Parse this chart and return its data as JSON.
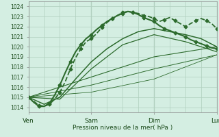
{
  "xlabel": "Pression niveau de la mer( hPa )",
  "bg_color": "#d4eee2",
  "grid_color": "#b0cfbe",
  "line_color": "#2d6b2d",
  "xlim": [
    0,
    72
  ],
  "ylim": [
    1013.5,
    1024.5
  ],
  "yticks": [
    1014,
    1015,
    1016,
    1017,
    1018,
    1019,
    1020,
    1021,
    1022,
    1023,
    1024
  ],
  "xtick_positions": [
    0,
    24,
    48,
    72
  ],
  "xtick_labels": [
    "Ven",
    "Sam",
    "Dim",
    "Lun"
  ],
  "lines": [
    {
      "x": [
        0,
        2,
        4,
        6,
        8,
        10,
        12,
        14,
        16,
        18,
        20,
        22,
        24,
        26,
        28,
        30,
        32,
        34,
        36,
        38,
        40,
        42,
        44,
        46,
        48,
        50,
        52,
        54,
        56,
        58,
        60,
        62,
        64,
        66,
        68,
        70,
        72
      ],
      "y": [
        1015.0,
        1014.6,
        1014.2,
        1014.1,
        1014.3,
        1014.8,
        1015.5,
        1016.5,
        1017.8,
        1018.9,
        1019.8,
        1020.5,
        1020.8,
        1021.3,
        1021.9,
        1022.4,
        1022.8,
        1023.1,
        1023.4,
        1023.5,
        1023.4,
        1023.3,
        1023.1,
        1023.0,
        1022.8,
        1022.5,
        1022.7,
        1022.9,
        1022.6,
        1022.3,
        1022.0,
        1022.3,
        1022.6,
        1022.8,
        1022.6,
        1022.3,
        1021.8
      ],
      "style": "--",
      "marker": "D",
      "markersize": 2.5,
      "lw": 1.3
    },
    {
      "x": [
        0,
        2,
        4,
        6,
        8,
        10,
        12,
        14,
        16,
        18,
        20,
        22,
        24,
        26,
        28,
        30,
        32,
        34,
        36,
        38,
        40,
        42,
        44,
        46,
        48,
        50,
        52,
        54,
        56,
        58,
        60,
        62,
        64,
        66,
        68,
        70,
        72
      ],
      "y": [
        1015.0,
        1014.5,
        1014.1,
        1014.1,
        1014.4,
        1015.2,
        1016.2,
        1017.4,
        1018.5,
        1019.5,
        1020.2,
        1020.8,
        1021.2,
        1021.7,
        1022.1,
        1022.5,
        1022.8,
        1023.1,
        1023.3,
        1023.5,
        1023.4,
        1023.2,
        1022.9,
        1022.7,
        1022.5,
        1022.1,
        1021.8,
        1021.6,
        1021.4,
        1021.2,
        1021.0,
        1020.7,
        1020.5,
        1020.3,
        1020.1,
        1019.9,
        1019.8
      ],
      "style": "-",
      "marker": "D",
      "markersize": 2.5,
      "lw": 1.5
    },
    {
      "x": [
        0,
        6,
        12,
        18,
        24,
        30,
        36,
        42,
        48,
        54,
        60,
        66,
        72
      ],
      "y": [
        1015.0,
        1014.3,
        1015.0,
        1016.8,
        1018.5,
        1019.8,
        1020.8,
        1021.5,
        1021.8,
        1021.5,
        1021.2,
        1020.8,
        1020.0
      ],
      "style": "-",
      "marker": null,
      "markersize": 0,
      "lw": 1.1
    },
    {
      "x": [
        0,
        12,
        24,
        36,
        48,
        60,
        72
      ],
      "y": [
        1015.0,
        1014.8,
        1017.8,
        1020.2,
        1021.2,
        1020.5,
        1019.5
      ],
      "style": "-",
      "marker": null,
      "markersize": 0,
      "lw": 0.9
    },
    {
      "x": [
        0,
        24,
        48,
        72
      ],
      "y": [
        1015.0,
        1017.0,
        1019.0,
        1020.0
      ],
      "style": "-",
      "marker": null,
      "markersize": 0,
      "lw": 0.8
    },
    {
      "x": [
        0,
        24,
        48,
        72
      ],
      "y": [
        1015.0,
        1016.2,
        1017.8,
        1019.2
      ],
      "style": "-",
      "marker": null,
      "markersize": 0,
      "lw": 0.7
    },
    {
      "x": [
        0,
        24,
        48,
        72
      ],
      "y": [
        1015.0,
        1015.5,
        1016.8,
        1019.2
      ],
      "style": "-",
      "marker": null,
      "markersize": 0,
      "lw": 0.6
    }
  ]
}
